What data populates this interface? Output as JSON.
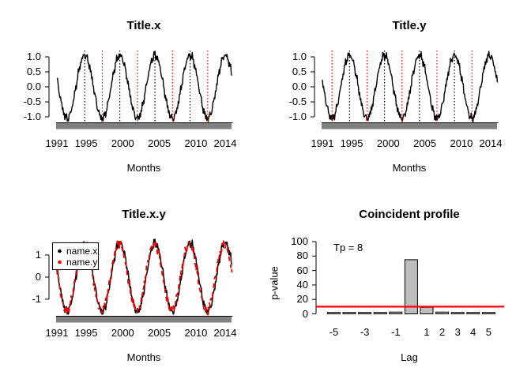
{
  "colors": {
    "background": "#ffffff",
    "black": "#000000",
    "accent_red": "#ff0000",
    "bar_gray": "#bebebe"
  },
  "chart_data": [
    {
      "type": "line",
      "title": "Title.x",
      "xlabel": "Months",
      "x_range_years": [
        1991,
        2014.92
      ],
      "x_tick_years": [
        1991,
        1995,
        2000,
        2005,
        2010,
        2014
      ],
      "x_tick_labels": [
        "1991",
        "1995",
        "2000",
        "2005",
        "2010",
        "2014"
      ],
      "y_tick_values": [
        1,
        0.5,
        0,
        -0.5,
        -1
      ],
      "y_tick_labels": [
        "1.0",
        "0.5",
        "0.0",
        "-0.5",
        "-1.0"
      ],
      "monthly_tick_rug": true,
      "series": [
        {
          "name": "Title.x",
          "color": "#000000",
          "dash": "",
          "width": 1.4,
          "amplitude": 1.05,
          "period_years": 4.8,
          "trough_year": 1997.2,
          "noise": 0.16,
          "seed": 1.7,
          "samples_per_year": 12
        }
      ],
      "peak_marker_lines": {
        "color": "#000000",
        "pattern": "dotted",
        "years": [
          1994.8,
          1999.6,
          2004.4,
          2009.2
        ]
      },
      "trough_marker_lines": {
        "color": "#ff0000",
        "pattern": "dotted",
        "years": [
          1997.2,
          2002.0,
          2006.8,
          2011.6
        ]
      }
    },
    {
      "type": "line",
      "title": "Title.y",
      "xlabel": "Months",
      "x_range_years": [
        1991,
        2014.92
      ],
      "x_tick_years": [
        1991,
        1995,
        2000,
        2005,
        2010,
        2014
      ],
      "x_tick_labels": [
        "1991",
        "1995",
        "2000",
        "2005",
        "2010",
        "2014"
      ],
      "y_tick_values": [
        1,
        0.5,
        0,
        -0.5,
        -1
      ],
      "y_tick_labels": [
        "1.0",
        "0.5",
        "0.0",
        "-0.5",
        "-1.0"
      ],
      "monthly_tick_rug": true,
      "series": [
        {
          "name": "Title.y",
          "color": "#000000",
          "dash": "",
          "width": 1.4,
          "amplitude": 1.05,
          "period_years": 4.78,
          "trough_year": 1997.1,
          "noise": 0.16,
          "seed": 4.2,
          "samples_per_year": 12
        }
      ],
      "peak_marker_lines": {
        "color": "#000000",
        "pattern": "dotted",
        "years": [
          1994.71,
          1999.49,
          2004.27,
          2009.05
        ]
      },
      "trough_marker_lines": {
        "color": "#ff0000",
        "pattern": "dotted",
        "years": [
          1992.32,
          1997.1,
          2001.88,
          2006.66,
          2011.44
        ]
      }
    },
    {
      "type": "line",
      "title": "Title.x.y",
      "xlabel": "Months",
      "x_range_years": [
        1991,
        2014.92
      ],
      "x_tick_years": [
        1991,
        1995,
        2000,
        2005,
        2010,
        2014
      ],
      "x_tick_labels": [
        "1991",
        "1995",
        "2000",
        "2005",
        "2010",
        "2014"
      ],
      "y_tick_values": [
        1,
        0,
        -1
      ],
      "y_tick_labels": [
        "1",
        "0",
        "-1"
      ],
      "monthly_tick_rug": true,
      "legend": {
        "position": "top-left",
        "entries": [
          {
            "label": "name.x",
            "color": "#000000",
            "marker": "filled-dot"
          },
          {
            "label": "name.y",
            "color": "#ff0000",
            "marker": "filled-dot"
          }
        ]
      },
      "series": [
        {
          "name": "name.x",
          "color": "#000000",
          "dash": "",
          "width": 1.5,
          "amplitude": 1.55,
          "period_years": 4.8,
          "trough_year": 1997.2,
          "noise": 0.22,
          "seed": 1.7,
          "samples_per_year": 12
        },
        {
          "name": "name.y",
          "color": "#ff0000",
          "dash": "6 5",
          "width": 1.8,
          "amplitude": 1.5,
          "period_years": 4.78,
          "trough_year": 1997.1,
          "noise": 0.22,
          "seed": 4.2,
          "samples_per_year": 12
        }
      ]
    },
    {
      "type": "bar",
      "title": "Coincident profile",
      "xlabel": "Lag",
      "ylabel": "p-value",
      "annotation": "Tp = 8",
      "categories": [
        -5,
        -4,
        -3,
        -2,
        -1,
        0,
        1,
        2,
        3,
        4,
        5
      ],
      "values": [
        2,
        2,
        2,
        2,
        2.5,
        75,
        9,
        2.5,
        2,
        2,
        2
      ],
      "x_tick_labels": [
        {
          "lag": -5,
          "label": "-5"
        },
        {
          "lag": -3,
          "label": "-3"
        },
        {
          "lag": -1,
          "label": "-1"
        },
        {
          "lag": 1,
          "label": "1"
        },
        {
          "lag": 2,
          "label": "2"
        },
        {
          "lag": 3,
          "label": "3"
        },
        {
          "lag": 4,
          "label": "4"
        },
        {
          "lag": 5,
          "label": "5"
        }
      ],
      "y_tick_values": [
        0,
        20,
        40,
        60,
        80,
        100
      ],
      "y_tick_labels": [
        "0",
        "20",
        "40",
        "60",
        "80",
        "100"
      ],
      "ylim": [
        0,
        100
      ],
      "threshold_line": {
        "value": 10,
        "color": "#ff0000"
      },
      "bar_fill": "#bebebe",
      "bar_stroke": "#000000"
    }
  ]
}
